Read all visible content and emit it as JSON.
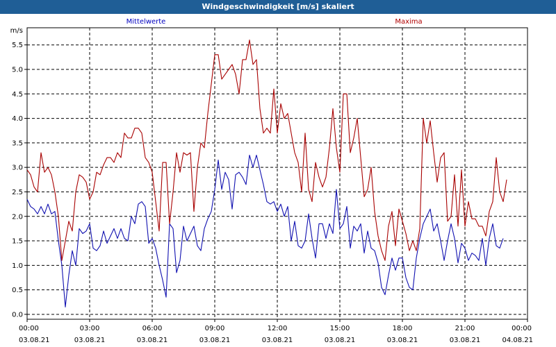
{
  "window": {
    "title": "Windgeschwindigkeit [m/s] skaliert"
  },
  "chart_data": {
    "type": "line",
    "title": "Windgeschwindigkeit [m/s] skaliert",
    "ylabel": "m/s",
    "ylim": [
      -0.1,
      5.85
    ],
    "y_ticks": [
      "0.0",
      "0.5",
      "1.0",
      "1.5",
      "2.0",
      "2.5",
      "3.0",
      "3.5",
      "4.0",
      "4.5",
      "5.0",
      "5.5"
    ],
    "x_ticks": [
      {
        "time": "00:00",
        "date": "03.08.21"
      },
      {
        "time": "03:00",
        "date": "03.08.21"
      },
      {
        "time": "06:00",
        "date": "03.08.21"
      },
      {
        "time": "09:00",
        "date": "03.08.21"
      },
      {
        "time": "12:00",
        "date": "03.08.21"
      },
      {
        "time": "15:00",
        "date": "03.08.21"
      },
      {
        "time": "18:00",
        "date": "03.08.21"
      },
      {
        "time": "21:00",
        "date": "03.08.21"
      },
      {
        "time": "00:00",
        "date": "04.08.21"
      }
    ],
    "grid": true,
    "legend": [
      {
        "name": "Mittelwerte",
        "color": "#0000c0"
      },
      {
        "name": "Maxima",
        "color": "#b00000"
      }
    ],
    "series": [
      {
        "name": "Mittelwerte",
        "color": "#1010b0",
        "points": [
          [
            "00:00",
            2.35
          ],
          [
            "00:10",
            2.2
          ],
          [
            "00:20",
            2.15
          ],
          [
            "00:30",
            2.05
          ],
          [
            "00:40",
            2.2
          ],
          [
            "00:50",
            2.05
          ],
          [
            "01:00",
            2.25
          ],
          [
            "01:10",
            2.05
          ],
          [
            "01:20",
            2.1
          ],
          [
            "01:30",
            1.5
          ],
          [
            "01:40",
            1.0
          ],
          [
            "01:50",
            0.15
          ],
          [
            "02:00",
            0.8
          ],
          [
            "02:10",
            1.3
          ],
          [
            "02:20",
            1.0
          ],
          [
            "02:30",
            1.75
          ],
          [
            "02:40",
            1.65
          ],
          [
            "02:50",
            1.7
          ],
          [
            "03:00",
            1.85
          ],
          [
            "03:10",
            1.35
          ],
          [
            "03:20",
            1.3
          ],
          [
            "03:30",
            1.4
          ],
          [
            "03:40",
            1.7
          ],
          [
            "03:50",
            1.45
          ],
          [
            "04:00",
            1.6
          ],
          [
            "04:10",
            1.75
          ],
          [
            "04:20",
            1.55
          ],
          [
            "04:30",
            1.75
          ],
          [
            "04:40",
            1.55
          ],
          [
            "04:50",
            1.5
          ],
          [
            "05:00",
            2.0
          ],
          [
            "05:10",
            1.85
          ],
          [
            "05:20",
            2.25
          ],
          [
            "05:30",
            2.3
          ],
          [
            "05:40",
            2.2
          ],
          [
            "05:50",
            1.45
          ],
          [
            "06:00",
            1.55
          ],
          [
            "06:10",
            1.35
          ],
          [
            "06:20",
            1.0
          ],
          [
            "06:30",
            0.7
          ],
          [
            "06:40",
            0.35
          ],
          [
            "06:50",
            1.85
          ],
          [
            "07:00",
            1.75
          ],
          [
            "07:10",
            0.85
          ],
          [
            "07:20",
            1.1
          ],
          [
            "07:30",
            1.8
          ],
          [
            "07:40",
            1.5
          ],
          [
            "07:50",
            1.65
          ],
          [
            "08:00",
            1.8
          ],
          [
            "08:10",
            1.4
          ],
          [
            "08:20",
            1.3
          ],
          [
            "08:30",
            1.75
          ],
          [
            "08:40",
            1.95
          ],
          [
            "08:50",
            2.1
          ],
          [
            "09:00",
            2.55
          ],
          [
            "09:10",
            3.15
          ],
          [
            "09:20",
            2.55
          ],
          [
            "09:30",
            2.9
          ],
          [
            "09:40",
            2.75
          ],
          [
            "09:50",
            2.15
          ],
          [
            "10:00",
            2.85
          ],
          [
            "10:10",
            2.9
          ],
          [
            "10:20",
            2.8
          ],
          [
            "10:30",
            2.65
          ],
          [
            "10:40",
            3.25
          ],
          [
            "10:50",
            3.0
          ],
          [
            "11:00",
            3.25
          ],
          [
            "11:10",
            2.95
          ],
          [
            "11:20",
            2.65
          ],
          [
            "11:30",
            2.3
          ],
          [
            "11:40",
            2.25
          ],
          [
            "11:50",
            2.3
          ],
          [
            "12:00",
            2.1
          ],
          [
            "12:10",
            2.25
          ],
          [
            "12:20",
            2.0
          ],
          [
            "12:30",
            2.2
          ],
          [
            "12:40",
            1.5
          ],
          [
            "12:50",
            1.9
          ],
          [
            "13:00",
            1.4
          ],
          [
            "13:10",
            1.35
          ],
          [
            "13:20",
            1.5
          ],
          [
            "13:30",
            2.05
          ],
          [
            "13:40",
            1.55
          ],
          [
            "13:50",
            1.15
          ],
          [
            "14:00",
            1.85
          ],
          [
            "14:10",
            1.85
          ],
          [
            "14:20",
            1.55
          ],
          [
            "14:30",
            1.85
          ],
          [
            "14:40",
            1.65
          ],
          [
            "14:50",
            2.55
          ],
          [
            "15:00",
            1.75
          ],
          [
            "15:10",
            1.85
          ],
          [
            "15:20",
            2.2
          ],
          [
            "15:30",
            1.35
          ],
          [
            "15:40",
            1.8
          ],
          [
            "15:50",
            1.7
          ],
          [
            "16:00",
            1.85
          ],
          [
            "16:10",
            1.25
          ],
          [
            "16:20",
            1.7
          ],
          [
            "16:30",
            1.35
          ],
          [
            "16:40",
            1.3
          ],
          [
            "16:50",
            1.05
          ],
          [
            "17:00",
            0.55
          ],
          [
            "17:10",
            0.4
          ],
          [
            "17:20",
            0.8
          ],
          [
            "17:30",
            1.15
          ],
          [
            "17:40",
            0.9
          ],
          [
            "17:50",
            1.15
          ],
          [
            "18:00",
            1.15
          ],
          [
            "18:10",
            0.75
          ],
          [
            "18:20",
            0.55
          ],
          [
            "18:30",
            0.5
          ],
          [
            "18:40",
            1.15
          ],
          [
            "18:50",
            1.55
          ],
          [
            "19:00",
            1.85
          ],
          [
            "19:10",
            2.0
          ],
          [
            "19:20",
            2.15
          ],
          [
            "19:30",
            1.7
          ],
          [
            "19:40",
            1.85
          ],
          [
            "19:50",
            1.5
          ],
          [
            "20:00",
            1.1
          ],
          [
            "20:10",
            1.5
          ],
          [
            "20:20",
            1.85
          ],
          [
            "20:30",
            1.55
          ],
          [
            "20:40",
            1.05
          ],
          [
            "20:50",
            1.45
          ],
          [
            "21:00",
            1.35
          ],
          [
            "21:10",
            1.1
          ],
          [
            "21:20",
            1.25
          ],
          [
            "21:30",
            1.2
          ],
          [
            "21:40",
            1.1
          ],
          [
            "21:50",
            1.55
          ],
          [
            "22:00",
            1.0
          ],
          [
            "22:10",
            1.55
          ],
          [
            "22:20",
            1.85
          ],
          [
            "22:30",
            1.4
          ],
          [
            "22:40",
            1.35
          ],
          [
            "22:50",
            1.55
          ]
        ]
      },
      {
        "name": "Maxima",
        "color": "#a80000",
        "points": [
          [
            "00:00",
            2.95
          ],
          [
            "00:10",
            2.85
          ],
          [
            "00:20",
            2.6
          ],
          [
            "00:30",
            2.5
          ],
          [
            "00:40",
            3.3
          ],
          [
            "00:50",
            2.9
          ],
          [
            "01:00",
            3.0
          ],
          [
            "01:10",
            2.85
          ],
          [
            "01:20",
            2.5
          ],
          [
            "01:30",
            2.0
          ],
          [
            "01:40",
            1.1
          ],
          [
            "01:50",
            1.5
          ],
          [
            "02:00",
            1.9
          ],
          [
            "02:10",
            1.7
          ],
          [
            "02:20",
            2.5
          ],
          [
            "02:30",
            2.85
          ],
          [
            "02:40",
            2.8
          ],
          [
            "02:50",
            2.7
          ],
          [
            "03:00",
            2.35
          ],
          [
            "03:10",
            2.5
          ],
          [
            "03:20",
            2.9
          ],
          [
            "03:30",
            2.85
          ],
          [
            "03:40",
            3.05
          ],
          [
            "03:50",
            3.2
          ],
          [
            "04:00",
            3.2
          ],
          [
            "04:10",
            3.1
          ],
          [
            "04:20",
            3.3
          ],
          [
            "04:30",
            3.2
          ],
          [
            "04:40",
            3.7
          ],
          [
            "04:50",
            3.6
          ],
          [
            "05:00",
            3.6
          ],
          [
            "05:10",
            3.8
          ],
          [
            "05:20",
            3.8
          ],
          [
            "05:30",
            3.7
          ],
          [
            "05:40",
            3.2
          ],
          [
            "05:50",
            3.1
          ],
          [
            "06:00",
            2.9
          ],
          [
            "06:10",
            2.3
          ],
          [
            "06:20",
            1.7
          ],
          [
            "06:30",
            3.1
          ],
          [
            "06:40",
            3.1
          ],
          [
            "06:50",
            1.85
          ],
          [
            "07:00",
            2.5
          ],
          [
            "07:10",
            3.3
          ],
          [
            "07:20",
            2.9
          ],
          [
            "07:30",
            3.3
          ],
          [
            "07:40",
            3.25
          ],
          [
            "07:50",
            3.3
          ],
          [
            "08:00",
            2.1
          ],
          [
            "08:10",
            3.0
          ],
          [
            "08:20",
            3.5
          ],
          [
            "08:30",
            3.4
          ],
          [
            "08:40",
            4.1
          ],
          [
            "08:50",
            4.7
          ],
          [
            "09:00",
            5.3
          ],
          [
            "09:10",
            5.3
          ],
          [
            "09:20",
            4.8
          ],
          [
            "09:30",
            4.9
          ],
          [
            "09:40",
            5.0
          ],
          [
            "09:50",
            5.1
          ],
          [
            "10:00",
            4.9
          ],
          [
            "10:10",
            4.5
          ],
          [
            "10:20",
            5.2
          ],
          [
            "10:30",
            5.2
          ],
          [
            "10:40",
            5.6
          ],
          [
            "10:50",
            5.1
          ],
          [
            "11:00",
            5.2
          ],
          [
            "11:10",
            4.2
          ],
          [
            "11:20",
            3.7
          ],
          [
            "11:30",
            3.8
          ],
          [
            "11:40",
            3.7
          ],
          [
            "11:50",
            4.6
          ],
          [
            "12:00",
            3.7
          ],
          [
            "12:10",
            4.3
          ],
          [
            "12:20",
            4.0
          ],
          [
            "12:30",
            4.1
          ],
          [
            "12:40",
            3.7
          ],
          [
            "12:50",
            3.3
          ],
          [
            "13:00",
            3.1
          ],
          [
            "13:10",
            2.5
          ],
          [
            "13:20",
            3.7
          ],
          [
            "13:30",
            2.55
          ],
          [
            "13:40",
            2.3
          ],
          [
            "13:50",
            3.1
          ],
          [
            "14:00",
            2.8
          ],
          [
            "14:10",
            2.6
          ],
          [
            "14:20",
            2.8
          ],
          [
            "14:30",
            3.4
          ],
          [
            "14:40",
            4.2
          ],
          [
            "14:50",
            3.4
          ],
          [
            "15:00",
            2.9
          ],
          [
            "15:10",
            4.5
          ],
          [
            "15:20",
            4.5
          ],
          [
            "15:30",
            3.3
          ],
          [
            "15:40",
            3.6
          ],
          [
            "15:50",
            4.0
          ],
          [
            "16:00",
            3.2
          ],
          [
            "16:10",
            2.4
          ],
          [
            "16:20",
            2.55
          ],
          [
            "16:30",
            3.0
          ],
          [
            "16:40",
            2.1
          ],
          [
            "16:50",
            1.6
          ],
          [
            "17:00",
            1.3
          ],
          [
            "17:10",
            1.1
          ],
          [
            "17:20",
            1.8
          ],
          [
            "17:30",
            2.1
          ],
          [
            "17:40",
            1.4
          ],
          [
            "17:50",
            2.15
          ],
          [
            "18:00",
            1.9
          ],
          [
            "18:10",
            1.65
          ],
          [
            "18:20",
            1.3
          ],
          [
            "18:30",
            1.5
          ],
          [
            "18:40",
            1.3
          ],
          [
            "18:50",
            1.75
          ],
          [
            "19:00",
            4.0
          ],
          [
            "19:10",
            3.5
          ],
          [
            "19:20",
            3.95
          ],
          [
            "19:30",
            3.3
          ],
          [
            "19:40",
            2.7
          ],
          [
            "19:50",
            3.2
          ],
          [
            "20:00",
            3.3
          ],
          [
            "20:10",
            1.9
          ],
          [
            "20:20",
            2.0
          ],
          [
            "20:30",
            2.85
          ],
          [
            "20:40",
            1.8
          ],
          [
            "20:50",
            2.95
          ],
          [
            "21:00",
            1.8
          ],
          [
            "21:10",
            2.3
          ],
          [
            "21:20",
            1.95
          ],
          [
            "21:30",
            1.95
          ],
          [
            "21:40",
            1.8
          ],
          [
            "21:50",
            1.8
          ],
          [
            "22:00",
            1.6
          ],
          [
            "22:10",
            2.1
          ],
          [
            "22:20",
            2.3
          ],
          [
            "22:30",
            3.2
          ],
          [
            "22:40",
            2.5
          ],
          [
            "22:50",
            2.3
          ],
          [
            "23:00",
            2.75
          ]
        ]
      }
    ]
  }
}
